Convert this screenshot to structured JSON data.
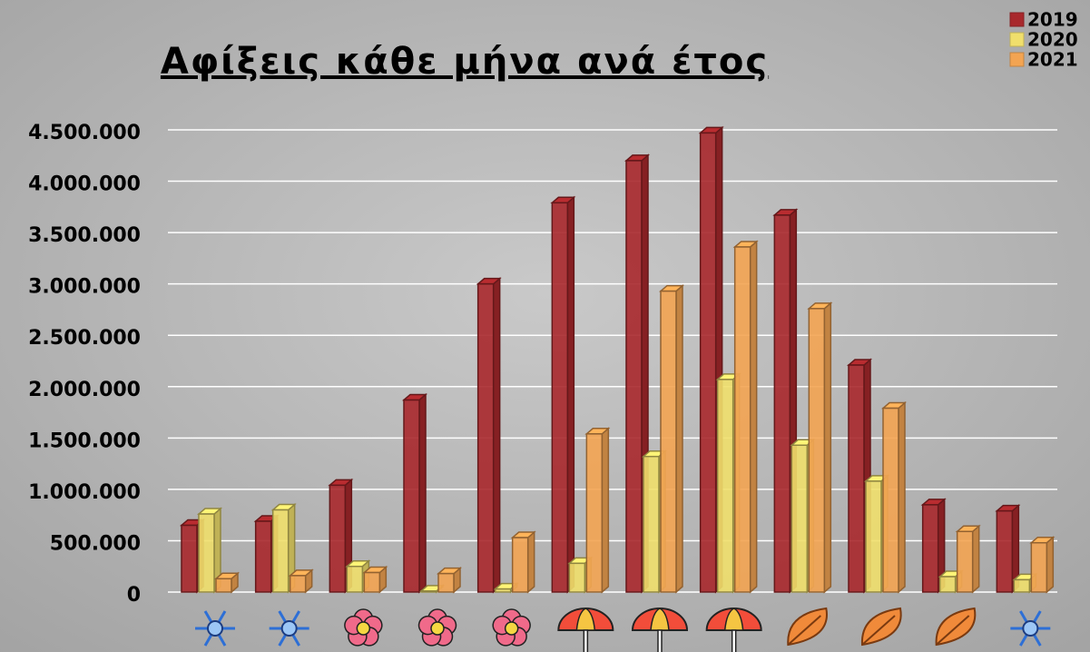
{
  "chart_data": {
    "type": "bar3d",
    "title": "Αφίξεις κάθε μήνα ανά έτος",
    "categories": [
      null,
      null,
      null,
      null,
      null,
      null,
      null,
      null,
      null,
      null,
      null,
      null
    ],
    "series": [
      {
        "name": "2019",
        "color": "#a8282c",
        "values": [
          650000,
          690000,
          1040000,
          1870000,
          3000000,
          3790000,
          4200000,
          4470000,
          3670000,
          2210000,
          850000,
          790000
        ]
      },
      {
        "name": "2020",
        "color": "#f0df6c",
        "values": [
          760000,
          800000,
          250000,
          10000,
          30000,
          280000,
          1320000,
          2070000,
          1430000,
          1080000,
          150000,
          120000
        ]
      },
      {
        "name": "2021",
        "color": "#f3a452",
        "values": [
          130000,
          160000,
          190000,
          180000,
          530000,
          1540000,
          2930000,
          3360000,
          2760000,
          1790000,
          590000,
          480000
        ]
      }
    ],
    "ylim": [
      0,
      4500000
    ],
    "yticks": [
      0,
      {
        "value": 500000,
        "label": "500.000"
      },
      {
        "value": 1000000,
        "label": "1.000.000"
      },
      {
        "value": 1500000,
        "label": "1.500.000"
      },
      {
        "value": 2000000,
        "label": "2.000.000"
      },
      {
        "value": 2500000,
        "label": "2.500.000"
      },
      {
        "value": 3000000,
        "label": "3.000.000"
      },
      {
        "value": 3500000,
        "label": "3.500.000"
      },
      {
        "value": 4000000,
        "label": "4.000.000"
      },
      {
        "value": 4500000,
        "label": "4.500.000"
      }
    ],
    "grid": true,
    "legend": "top-right"
  }
}
